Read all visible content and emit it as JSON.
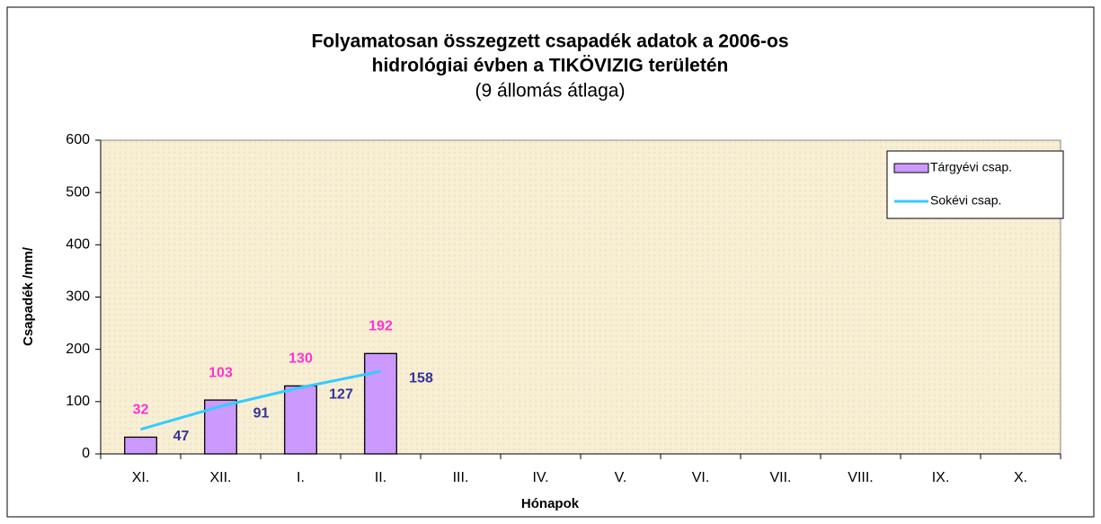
{
  "chart_data": {
    "type": "bar",
    "title": "Folyamatosan összegzett csapadék adatok a 2006-os",
    "title_line2": "hidrológiai évben a TIKÖVIZIG területén",
    "subtitle": "(9 állomás átlaga)",
    "x_label": "Hónapok",
    "y_label": "Csapadék /mm/",
    "categories": [
      "XI.",
      "XII.",
      "I.",
      "II.",
      "III.",
      "IV.",
      "V.",
      "VI.",
      "VII.",
      "VIII.",
      "IX.",
      "X."
    ],
    "series": [
      {
        "name": "Tárgyévi csap.",
        "type": "bar",
        "color": "#cc99ff",
        "label_color": "#ff33cc",
        "values": [
          32,
          103,
          130,
          192,
          null,
          null,
          null,
          null,
          null,
          null,
          null,
          null
        ]
      },
      {
        "name": "Sokévi csap.",
        "type": "line",
        "color": "#33ccff",
        "label_color": "#333399",
        "values": [
          47,
          91,
          127,
          158,
          null,
          null,
          null,
          null,
          null,
          null,
          null,
          null
        ]
      }
    ],
    "ylim": [
      0,
      600
    ],
    "yticks": [
      0,
      100,
      200,
      300,
      400,
      500,
      600
    ],
    "grid": false,
    "legend": "upper right"
  }
}
